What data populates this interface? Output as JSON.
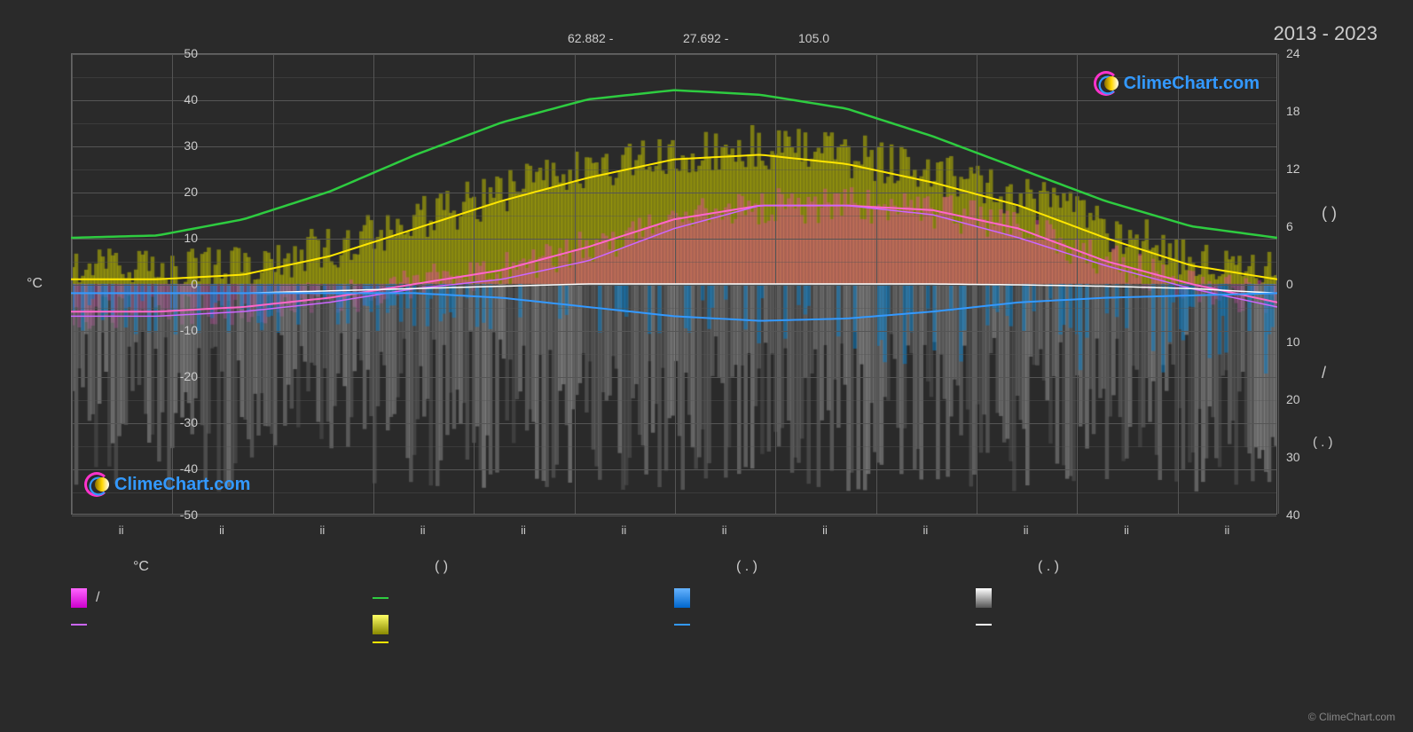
{
  "year_range": "2013 - 2023",
  "coords": [
    {
      "x": 640,
      "text": "62.882 -"
    },
    {
      "x": 770,
      "text": "27.692 -"
    },
    {
      "x": 900,
      "text": "105.0"
    }
  ],
  "left_axis": {
    "title": "°C",
    "min": -50,
    "max": 50,
    "ticks": [
      50,
      40,
      30,
      20,
      10,
      0,
      -10,
      -20,
      -30,
      -40,
      -50
    ]
  },
  "right_axis": {
    "ticks_upper": [
      24,
      18,
      12,
      6,
      0
    ],
    "ticks_lower": [
      10,
      20,
      30,
      40
    ],
    "brace_upper": "(       )",
    "slash": "/",
    "brace_lower": "(  . )"
  },
  "months_count": 12,
  "month_tick_label": "ii",
  "colors": {
    "bg": "#2a2a2a",
    "grid": "#555555",
    "green_line": "#2ecc40",
    "yellow_line": "#ffe600",
    "magenta_line": "#ff66cc",
    "violet_line": "#cc66ff",
    "white_line": "#ffffff",
    "blue_line": "#3399ff",
    "yellow_bar": "#bfbf00",
    "pink_bar": "#ff33cc",
    "blue_bar": "#0080d0",
    "grey_bar": "#999999",
    "watermark_text": "#3399ff"
  },
  "series": {
    "green": [
      10,
      10.5,
      14,
      20,
      28,
      35,
      40,
      42,
      41,
      38,
      32,
      25,
      18,
      12.5,
      10
    ],
    "yellow_avg": [
      1,
      1,
      2,
      6,
      12,
      18,
      23,
      27,
      28,
      26,
      22,
      17,
      10,
      4,
      1
    ],
    "magenta": [
      -6,
      -6,
      -5,
      -3,
      0,
      3,
      8,
      14,
      17,
      17,
      16,
      12,
      5,
      0,
      -4
    ],
    "violet": [
      -7,
      -7,
      -6,
      -4,
      -1,
      1,
      5,
      12,
      17,
      17,
      15,
      10,
      4,
      -1,
      -5
    ],
    "white": [
      -2,
      -2,
      -2,
      -1.5,
      -1,
      -0.5,
      0,
      0,
      0,
      0,
      0,
      -0.2,
      -0.5,
      -1,
      -2
    ],
    "blue": [
      -2,
      -2,
      -2,
      -2,
      -2,
      -3,
      -5,
      -7,
      -8,
      -7.5,
      -6,
      -4,
      -3,
      -2.5,
      -2
    ]
  },
  "watermark_text": "ClimeChart.com",
  "copyright": "© ClimeChart.com",
  "legend": {
    "headers": [
      "°C",
      "(           )",
      "(   . )",
      "(   . )"
    ],
    "rows": [
      [
        {
          "type": "bar",
          "gradient": "linear-gradient(180deg,#ff66ff,#cc00cc)",
          "text": "/"
        },
        {
          "type": "line",
          "color": "#2ecc40",
          "text": ""
        },
        {
          "type": "bar",
          "gradient": "linear-gradient(180deg,#66b3ff,#0066cc)",
          "text": ""
        },
        {
          "type": "bar",
          "gradient": "linear-gradient(180deg,#ffffff,#555555)",
          "text": ""
        }
      ],
      [
        {
          "type": "line",
          "color": "#cc66ff",
          "text": ""
        },
        {
          "type": "bar",
          "gradient": "linear-gradient(180deg,#ffff66,#888800)",
          "text": ""
        },
        {
          "type": "line",
          "color": "#3399ff",
          "text": ""
        },
        {
          "type": "line",
          "color": "#ffffff",
          "text": ""
        }
      ],
      [
        null,
        {
          "type": "line",
          "color": "#ffe600",
          "text": ""
        },
        null,
        null
      ]
    ]
  }
}
